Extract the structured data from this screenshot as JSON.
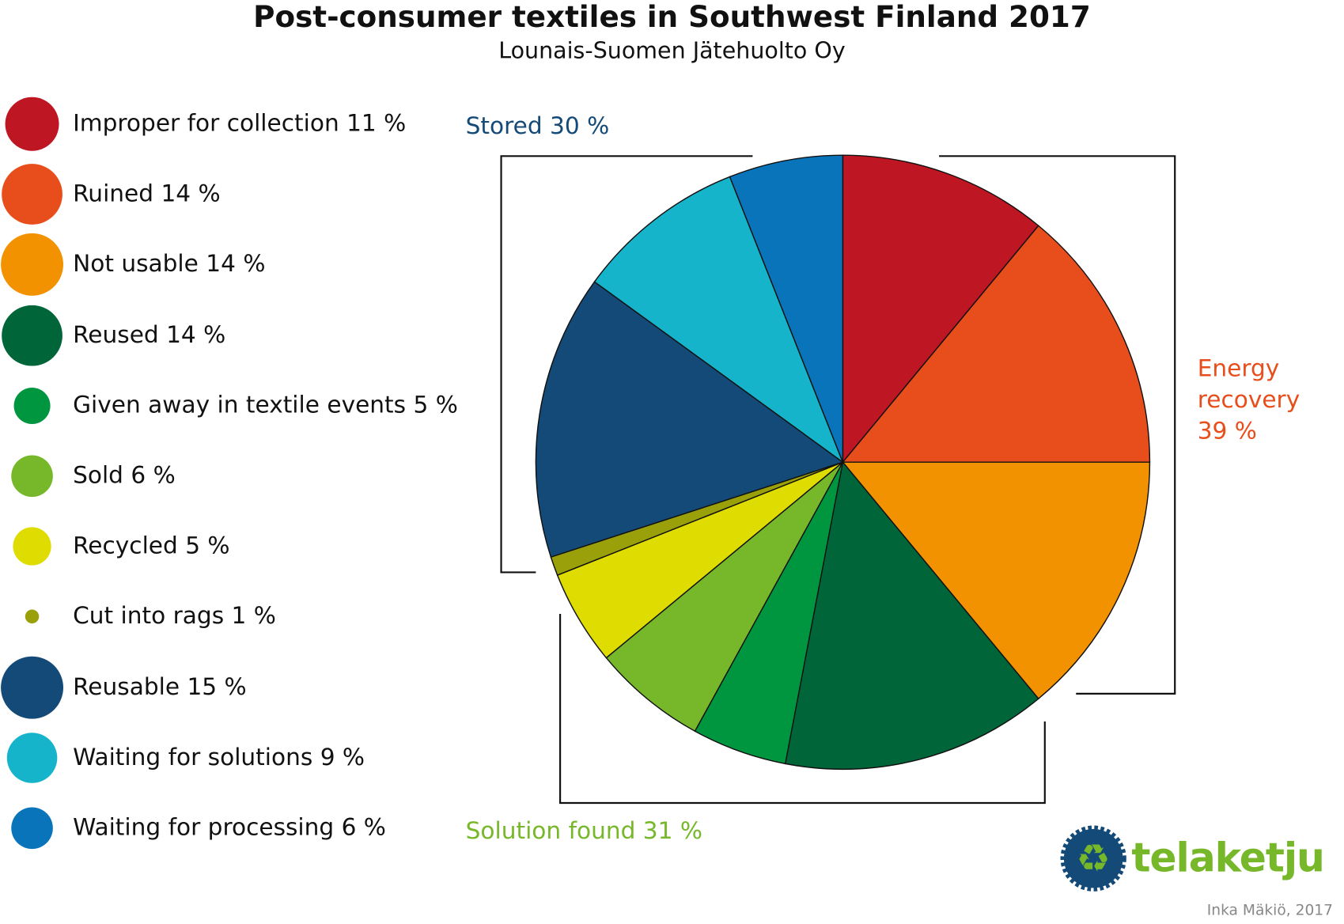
{
  "chart_data": {
    "type": "pie",
    "title": "Post-consumer textiles in Southwest Finland 2017",
    "subtitle": "Lounais-Suomen Jätehuolto Oy",
    "slices": [
      {
        "label": "Improper for collection",
        "value": 11,
        "legend": "Improper for collection 11 %",
        "color": "#be1622"
      },
      {
        "label": "Ruined",
        "value": 14,
        "legend": "Ruined 14 %",
        "color": "#e84e1b"
      },
      {
        "label": "Not usable",
        "value": 14,
        "legend": "Not usable 14 %",
        "color": "#f39200"
      },
      {
        "label": "Reused",
        "value": 14,
        "legend": "Reused 14 %",
        "color": "#006639"
      },
      {
        "label": "Given away in textile events",
        "value": 5,
        "legend": "Given away in textile events 5 %",
        "color": "#009640"
      },
      {
        "label": "Sold",
        "value": 6,
        "legend": "Sold 6 %",
        "color": "#76b82a"
      },
      {
        "label": "Recycled",
        "value": 5,
        "legend": "Recycled 5 %",
        "color": "#dedc00"
      },
      {
        "label": "Cut into rags",
        "value": 1,
        "legend": "Cut into rags 1 %",
        "color": "#9aa00a"
      },
      {
        "label": "Reusable",
        "value": 15,
        "legend": "Reusable 15 %",
        "color": "#144a78"
      },
      {
        "label": "Waiting for solutions",
        "value": 9,
        "legend": "Waiting for solutions 9 %",
        "color": "#16b4ca"
      },
      {
        "label": "Waiting for processing",
        "value": 6,
        "legend": "Waiting for processing 6 %",
        "color": "#0a74bb"
      }
    ],
    "groups": [
      {
        "label": "Stored 30 %",
        "color": "#144a78"
      },
      {
        "label_lines": [
          "Energy",
          "recovery",
          "39 %"
        ],
        "color": "#e84e1b"
      },
      {
        "label": "Solution found 31 %",
        "color": "#76b82a"
      }
    ],
    "legend_placement": "left"
  },
  "logo": {
    "text": "telaketju"
  },
  "credit": "Inka Mäkiö, 2017"
}
